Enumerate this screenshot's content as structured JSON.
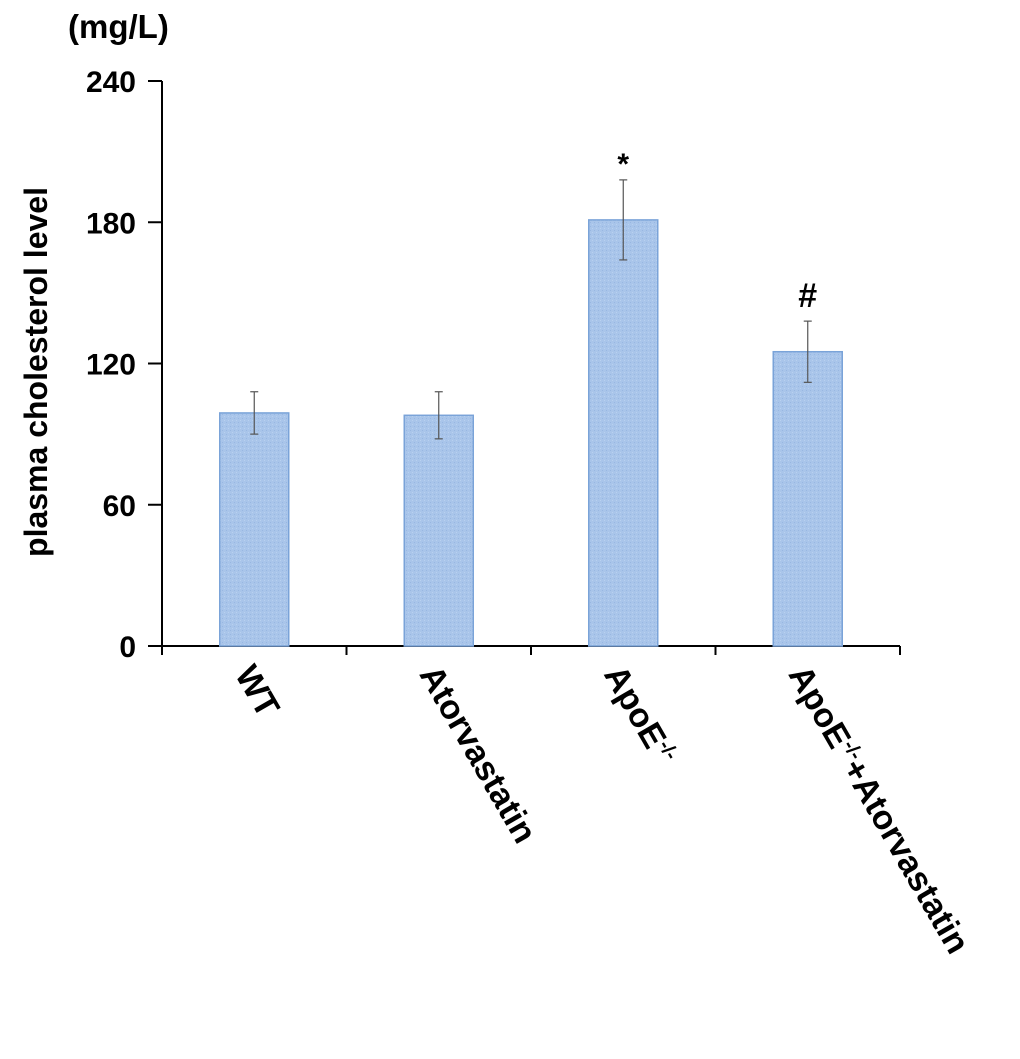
{
  "chart_data": {
    "type": "bar",
    "unit_label": "(mg/L)",
    "ylabel": "plasma cholesterol level",
    "xlabel": "",
    "ylim": [
      0,
      240
    ],
    "yticks": [
      "0",
      "60",
      "120",
      "180",
      "240"
    ],
    "categories": [
      "WT",
      "Atorvastatin",
      "ApoE-/-",
      "ApoE-/-+Atorvastatin"
    ],
    "category_parts": [
      {
        "main": "WT",
        "sup": "",
        "tail": ""
      },
      {
        "main": "Atorvastatin",
        "sup": "",
        "tail": ""
      },
      {
        "main": "ApoE",
        "sup": "-/-",
        "tail": ""
      },
      {
        "main": "ApoE",
        "sup": "-/-",
        "tail": "+Atorvastatin"
      }
    ],
    "values": [
      99,
      98,
      181,
      125
    ],
    "errors": [
      9,
      10,
      17,
      13
    ],
    "annotations": [
      "",
      "",
      "*",
      "#"
    ],
    "bar_color": "#a7c3e8",
    "bar_edge_color": "#7aa3d8",
    "grid": false,
    "legend": "none"
  }
}
